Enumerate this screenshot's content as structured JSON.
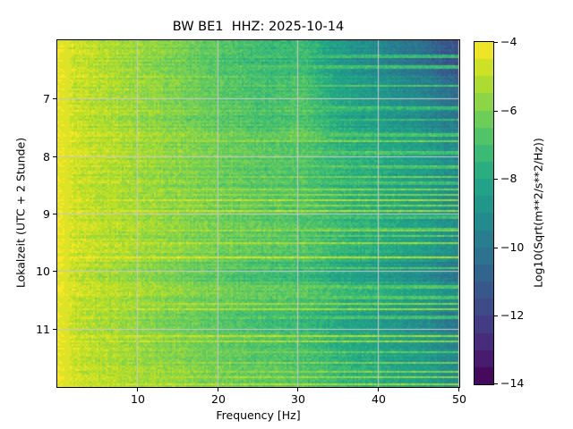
{
  "chart_data": {
    "type": "heatmap",
    "title": "BW BE1  HHZ: 2025-10-14",
    "xlabel": "Frequency [Hz]",
    "ylabel": "Lokalzeit (UTC + 2 Stunde)",
    "x_range_hz": [
      0,
      50
    ],
    "x_ticks": [
      10,
      20,
      30,
      40,
      50
    ],
    "x_tick_labels": [
      "10",
      "20",
      "30",
      "40",
      "50"
    ],
    "y_range_hours_local": [
      5.97,
      12.0
    ],
    "y_ticks": [
      7,
      8,
      9,
      10,
      11
    ],
    "y_tick_labels": [
      "7",
      "8",
      "9",
      "10",
      "11"
    ],
    "grid": true,
    "grid_color": "#c8c8c8",
    "colormap": "viridis",
    "colormap_stops": [
      [
        0.0,
        "#440154"
      ],
      [
        0.1,
        "#482475"
      ],
      [
        0.2,
        "#414487"
      ],
      [
        0.3,
        "#355f8d"
      ],
      [
        0.4,
        "#2a788e"
      ],
      [
        0.5,
        "#21918c"
      ],
      [
        0.6,
        "#22a884"
      ],
      [
        0.7,
        "#44bf70"
      ],
      [
        0.8,
        "#7ad151"
      ],
      [
        0.9,
        "#bddf26"
      ],
      [
        1.0,
        "#fde725"
      ]
    ],
    "value_scale": {
      "label": "Log10(Sqrt(m**2/s**2/Hz))",
      "min": -14,
      "max": -4,
      "ticks": [
        -4,
        -6,
        -8,
        -10,
        -12,
        -14
      ],
      "tick_labels": [
        "−4",
        "−6",
        "−8",
        "−10",
        "−12",
        "−14"
      ],
      "quant_step": 0.5
    },
    "background_profile_hz_vs_log10": [
      [
        0,
        -4.25
      ],
      [
        0.8,
        -4.35
      ],
      [
        2,
        -4.75
      ],
      [
        5,
        -5.0
      ],
      [
        10,
        -5.4
      ],
      [
        15,
        -5.8
      ],
      [
        20,
        -6.25
      ],
      [
        25,
        -6.6
      ],
      [
        30,
        -7.0
      ],
      [
        35,
        -7.45
      ],
      [
        40,
        -7.95
      ],
      [
        45,
        -8.5
      ],
      [
        50,
        -9.0
      ]
    ],
    "hf_attenuation_early": {
      "until_hour": 7.7,
      "rate": 1.35,
      "max": 2.6,
      "exponent": 2.0
    },
    "band_30hz": {
      "center": 30.5,
      "sigma": 2.8,
      "amp": 0.25,
      "early_extra": 0.45
    },
    "quiet_periods": [
      {
        "t0": 6.15,
        "t1": 6.6,
        "damp": 0.5
      },
      {
        "t0": 7.2,
        "t1": 7.5,
        "damp": 0.35
      },
      {
        "t0": 9.82,
        "t1": 10.18,
        "damp": 0.65
      },
      {
        "t0": 10.68,
        "t1": 11.03,
        "damp": 0.6
      },
      {
        "t0": 11.25,
        "t1": 11.35,
        "damp": 0.45
      }
    ],
    "events_local_hour_vs_strength": [
      {
        "t": 6.25,
        "s": 0.8
      },
      {
        "t": 6.43,
        "s": 1.0
      },
      {
        "t": 6.77,
        "s": 0.9
      },
      {
        "t": 7.15,
        "s": 1.1
      },
      {
        "t": 7.36,
        "s": 0.8
      },
      {
        "t": 7.62,
        "s": 1.3
      },
      {
        "t": 7.73,
        "s": 1.6
      },
      {
        "t": 7.93,
        "s": 1.4
      },
      {
        "t": 8.18,
        "s": 1.7
      },
      {
        "t": 8.34,
        "s": 1.5
      },
      {
        "t": 8.46,
        "s": 1.2
      },
      {
        "t": 8.56,
        "s": 2.0
      },
      {
        "t": 8.66,
        "s": 1.8
      },
      {
        "t": 8.75,
        "s": 2.2
      },
      {
        "t": 8.84,
        "s": 1.9
      },
      {
        "t": 8.94,
        "s": 2.3
      },
      {
        "t": 9.05,
        "s": 1.3
      },
      {
        "t": 9.27,
        "s": 1.9
      },
      {
        "t": 9.38,
        "s": 1.6
      },
      {
        "t": 9.5,
        "s": 2.1
      },
      {
        "t": 9.74,
        "s": 2.4
      },
      {
        "t": 9.94,
        "s": 1.2
      },
      {
        "t": 10.26,
        "s": 1.8
      },
      {
        "t": 10.45,
        "s": 2.2
      },
      {
        "t": 10.55,
        "s": 1.9
      },
      {
        "t": 10.64,
        "s": 2.3
      },
      {
        "t": 10.79,
        "s": 1.4
      },
      {
        "t": 11.11,
        "s": 2.2
      },
      {
        "t": 11.2,
        "s": 1.9
      },
      {
        "t": 11.39,
        "s": 1.5
      },
      {
        "t": 11.58,
        "s": 1.7
      },
      {
        "t": 11.74,
        "s": 2.1
      },
      {
        "t": 11.83,
        "s": 1.8
      },
      {
        "t": 11.96,
        "s": 2.4
      }
    ],
    "noise": {
      "cell": 0.45,
      "row": 0.3,
      "col": 0.12,
      "seed": 42
    }
  }
}
